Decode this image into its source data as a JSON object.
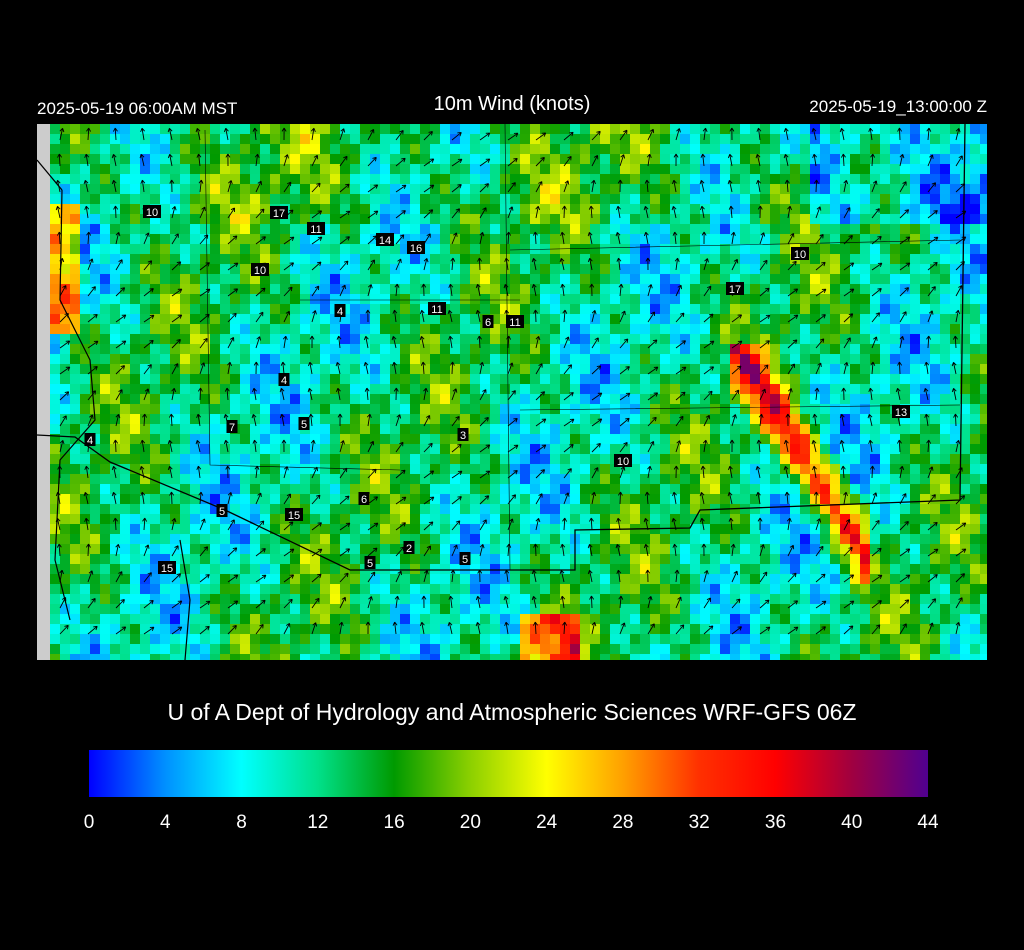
{
  "header": {
    "left": "2025-05-19 06:00AM MST",
    "title": "10m Wind (knots)",
    "right": "2025-05-19_13:00:00 Z"
  },
  "map": {
    "stations": [
      "10",
      "17",
      "11",
      "14",
      "16",
      "10",
      "4",
      "11",
      "6",
      "11",
      "4",
      "7",
      "5",
      "3",
      "4",
      "10",
      "6",
      "5",
      "15",
      "2",
      "5",
      "5",
      "15",
      "10",
      "17",
      "13"
    ]
  },
  "credit": "U of A Dept of Hydrology and Atmospheric Sciences WRF-GFS 06Z",
  "colorbar": {
    "ticks": [
      0,
      4,
      8,
      12,
      16,
      20,
      24,
      28,
      32,
      36,
      40,
      44
    ],
    "colors": [
      "#0000ff",
      "#0090ff",
      "#00ffff",
      "#00e08a",
      "#009a00",
      "#8cd000",
      "#ffff00",
      "#ffa000",
      "#ff3000",
      "#ff0000",
      "#a00040",
      "#500090"
    ]
  }
}
